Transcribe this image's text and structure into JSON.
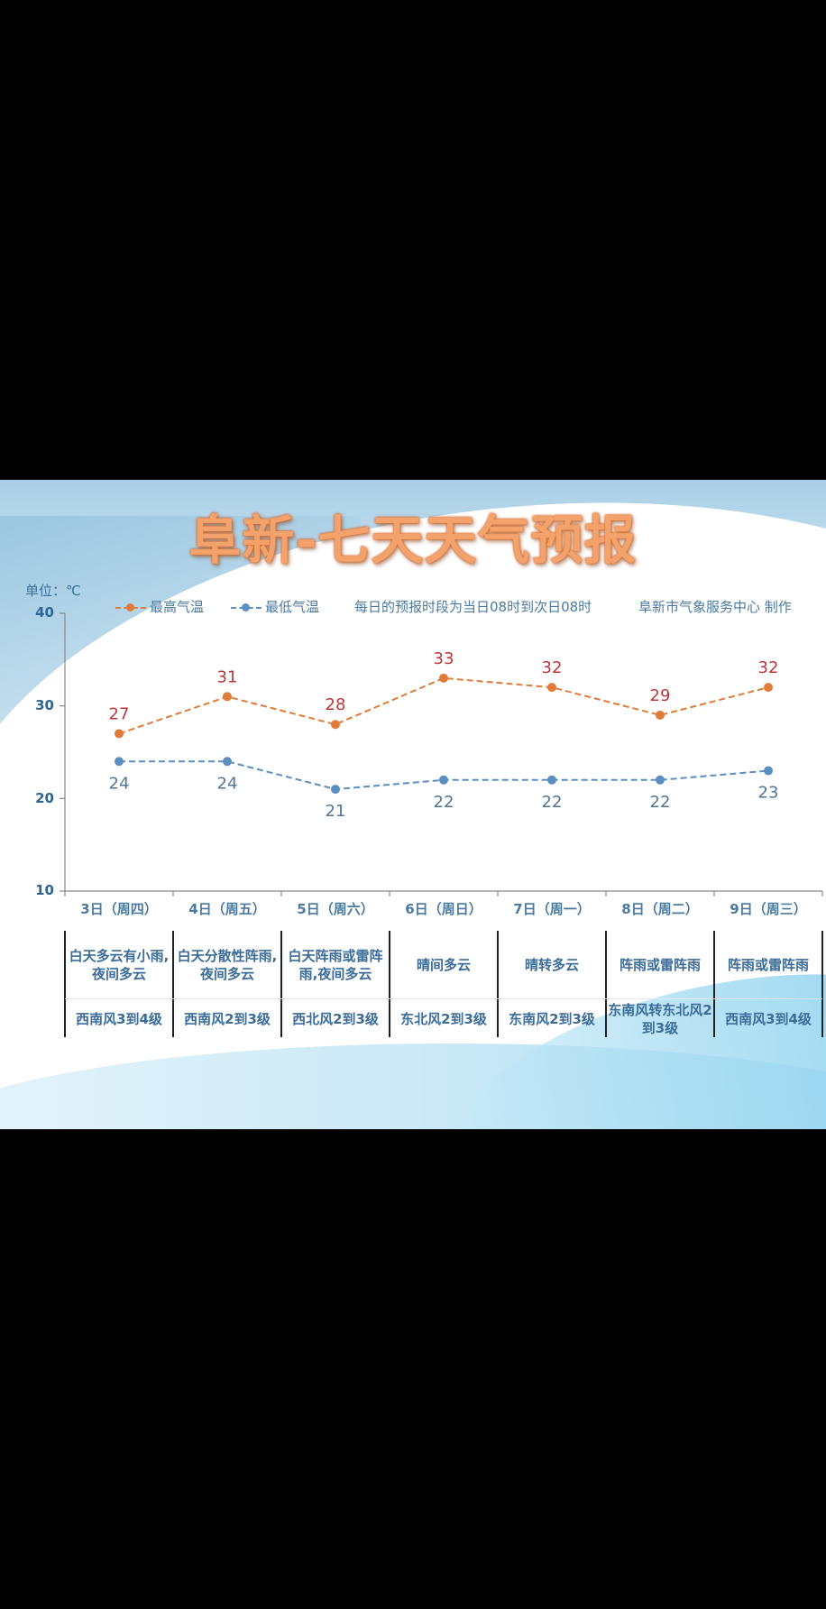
{
  "title": "阜新-七天天气预报",
  "unit_label": "单位：℃",
  "legend": {
    "high": {
      "label": "最高气温",
      "color": "#e07b39"
    },
    "low": {
      "label": "最低气温",
      "color": "#5b8fc2"
    },
    "note": "每日的预报时段为当日08时到次日08时",
    "credit": "阜新市气象服务中心 制作"
  },
  "chart_data": {
    "type": "line",
    "title": "阜新-七天天气预报",
    "xlabel": "",
    "ylabel": "单位：℃",
    "ylim": [
      10,
      40
    ],
    "yticks": [
      10,
      20,
      30,
      40
    ],
    "grid": false,
    "legend_position": "top",
    "categories": [
      "3日（周四）",
      "4日（周五）",
      "5日（周六）",
      "6日（周日）",
      "7日（周一）",
      "8日（周二）",
      "9日（周三）"
    ],
    "series": [
      {
        "name": "最高气温",
        "color": "#e07b39",
        "values": [
          27,
          31,
          28,
          33,
          32,
          29,
          32
        ]
      },
      {
        "name": "最低气温",
        "color": "#5b8fc2",
        "values": [
          24,
          24,
          21,
          22,
          22,
          22,
          23
        ]
      }
    ]
  },
  "days": [
    {
      "label": "3日（周四）",
      "weather": "白天多云有小雨,夜间多云",
      "wind": "西南风3到4级"
    },
    {
      "label": "4日（周五）",
      "weather": "白天分散性阵雨,夜间多云",
      "wind": "西南风2到3级"
    },
    {
      "label": "5日（周六）",
      "weather": "白天阵雨或雷阵雨,夜间多云",
      "wind": "西北风2到3级"
    },
    {
      "label": "6日（周日）",
      "weather": "晴间多云",
      "wind": "东北风2到3级"
    },
    {
      "label": "7日（周一）",
      "weather": "晴转多云",
      "wind": "东南风2到3级"
    },
    {
      "label": "8日（周二）",
      "weather": "阵雨或雷阵雨",
      "wind": "东南风转东北风2到3级"
    },
    {
      "label": "9日（周三）",
      "weather": "阵雨或雷阵雨",
      "wind": "西南风3到4级"
    }
  ]
}
